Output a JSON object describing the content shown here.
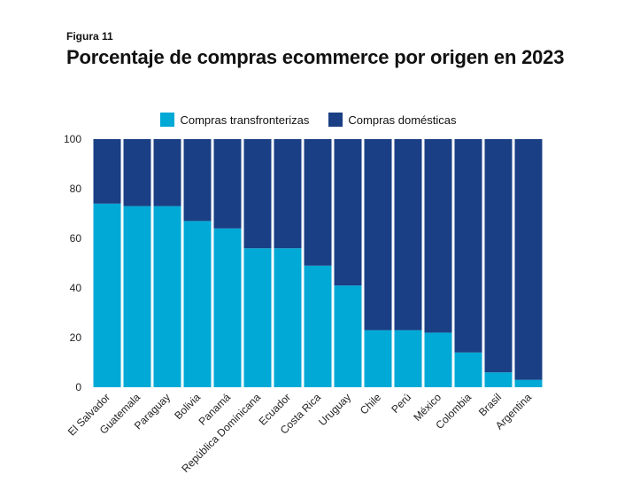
{
  "figure_label": "Figura 11",
  "title": "Porcentaje de compras ecommerce por origen en 2023",
  "colors": {
    "transfronterizas": "#00a9d6",
    "domesticas": "#1a3f85"
  },
  "chart_data": {
    "type": "bar",
    "stacked": true,
    "title": "Porcentaje de compras ecommerce por origen en 2023",
    "categories": [
      "El Salvador",
      "Guatemala",
      "Paraguay",
      "Bolivia",
      "Panamá",
      "República Dominicana",
      "Ecuador",
      "Costa Rica",
      "Uruguay",
      "Chile",
      "Perú",
      "México",
      "Colombia",
      "Brasil",
      "Argentina"
    ],
    "series": [
      {
        "name": "Compras transfronterizas",
        "values": [
          74,
          73,
          73,
          67,
          64,
          56,
          56,
          49,
          41,
          23,
          23,
          22,
          14,
          6,
          3
        ]
      },
      {
        "name": "Compras domésticas",
        "values": [
          26,
          27,
          27,
          33,
          36,
          44,
          44,
          51,
          59,
          77,
          77,
          78,
          86,
          94,
          97
        ]
      }
    ],
    "yticks": [
      "0",
      "20",
      "40",
      "60",
      "80",
      "100"
    ],
    "ylim": [
      0,
      100
    ],
    "xlabel": "",
    "ylabel": "",
    "legend_position": "top-center"
  }
}
